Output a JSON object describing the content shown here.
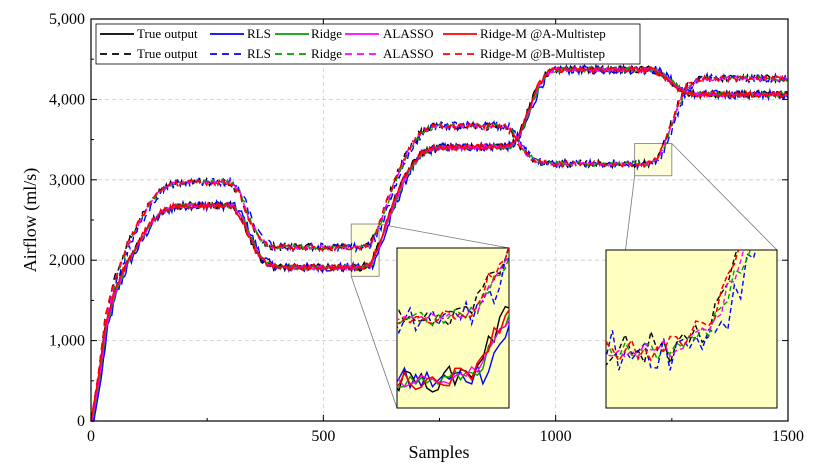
{
  "chart_data": {
    "type": "line",
    "title": "",
    "xlabel": "Samples",
    "ylabel": "Airflow (ml/s)",
    "xlim": [
      0,
      1500
    ],
    "ylim": [
      0,
      5000
    ],
    "x_ticks": [
      0,
      500,
      1000,
      1500
    ],
    "x_tick_labels": [
      "0",
      "500",
      "1000",
      "1500"
    ],
    "y_ticks": [
      0,
      1000,
      2000,
      3000,
      4000,
      5000
    ],
    "y_tick_labels": [
      "0",
      "1,000",
      "2,000",
      "3,000",
      "4,000",
      "5,000"
    ],
    "grid": true,
    "legend_position": "top-left",
    "legend_rows": [
      [
        "True output",
        "RLS",
        "Ridge",
        "ALASSO",
        "Ridge-M @A-Multistep"
      ],
      [
        "True output",
        "RLS",
        "Ridge",
        "ALASSO",
        "Ridge-M @B-Multistep"
      ]
    ],
    "colors": {
      "true": "#000000",
      "rls": "#0000ff",
      "ridge": "#00a000",
      "alasso": "#ff00ff",
      "ridgem": "#ff0000",
      "inset_bg": "#ffffc0"
    },
    "series": [
      {
        "name": "True output @A (solid)",
        "group": "A",
        "points": [
          [
            0,
            0
          ],
          [
            15,
            500
          ],
          [
            30,
            1150
          ],
          [
            50,
            1600
          ],
          [
            75,
            1950
          ],
          [
            100,
            2200
          ],
          [
            125,
            2450
          ],
          [
            150,
            2600
          ],
          [
            175,
            2660
          ],
          [
            200,
            2680
          ],
          [
            300,
            2680
          ],
          [
            320,
            2560
          ],
          [
            340,
            2300
          ],
          [
            360,
            2050
          ],
          [
            380,
            1950
          ],
          [
            400,
            1910
          ],
          [
            580,
            1910
          ],
          [
            600,
            1950
          ],
          [
            620,
            2200
          ],
          [
            650,
            2700
          ],
          [
            680,
            3100
          ],
          [
            710,
            3330
          ],
          [
            740,
            3400
          ],
          [
            900,
            3420
          ],
          [
            920,
            3550
          ],
          [
            940,
            3850
          ],
          [
            960,
            4150
          ],
          [
            980,
            4320
          ],
          [
            1000,
            4370
          ],
          [
            1210,
            4370
          ],
          [
            1230,
            4300
          ],
          [
            1260,
            4150
          ],
          [
            1280,
            4080
          ],
          [
            1300,
            4060
          ],
          [
            1500,
            4060
          ]
        ]
      },
      {
        "name": "True output @B (dashed)",
        "group": "B",
        "points": [
          [
            0,
            0
          ],
          [
            15,
            550
          ],
          [
            30,
            1250
          ],
          [
            50,
            1750
          ],
          [
            75,
            2150
          ],
          [
            100,
            2450
          ],
          [
            125,
            2700
          ],
          [
            150,
            2880
          ],
          [
            175,
            2950
          ],
          [
            200,
            2970
          ],
          [
            300,
            2970
          ],
          [
            320,
            2820
          ],
          [
            340,
            2500
          ],
          [
            360,
            2280
          ],
          [
            380,
            2180
          ],
          [
            400,
            2160
          ],
          [
            580,
            2160
          ],
          [
            600,
            2200
          ],
          [
            620,
            2450
          ],
          [
            650,
            2950
          ],
          [
            680,
            3350
          ],
          [
            710,
            3600
          ],
          [
            740,
            3670
          ],
          [
            890,
            3670
          ],
          [
            910,
            3550
          ],
          [
            930,
            3350
          ],
          [
            960,
            3220
          ],
          [
            990,
            3200
          ],
          [
            1200,
            3200
          ],
          [
            1220,
            3280
          ],
          [
            1240,
            3550
          ],
          [
            1260,
            3900
          ],
          [
            1280,
            4150
          ],
          [
            1300,
            4230
          ],
          [
            1320,
            4260
          ],
          [
            1500,
            4260
          ]
        ]
      }
    ],
    "inset_1": {
      "xlim": [
        560,
        620
      ],
      "ylim": [
        1800,
        2450
      ]
    },
    "inset_2": {
      "xlim": [
        1170,
        1250
      ],
      "ylim": [
        3050,
        3450
      ]
    }
  }
}
